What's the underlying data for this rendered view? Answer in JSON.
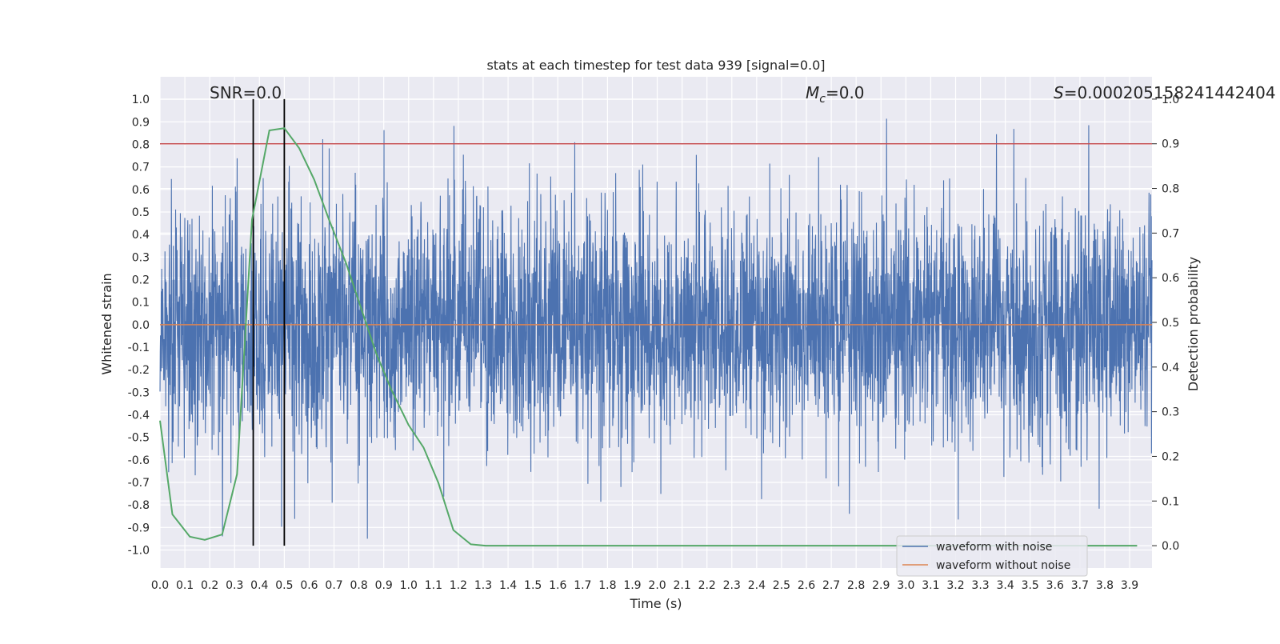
{
  "chart_data": {
    "type": "line",
    "title": "stats at each timestep for test data 939 [signal=0.0]",
    "xlabel": "Time (s)",
    "ylabel": "Whitened strain",
    "y2label": "Detection probability",
    "xlim": [
      0.0,
      3.99
    ],
    "ylim": [
      -1.08,
      1.1
    ],
    "y2lim": [
      -0.05,
      1.05
    ],
    "x_ticks": [
      "0.0",
      "0.1",
      "0.2",
      "0.3",
      "0.4",
      "0.5",
      "0.6",
      "0.7",
      "0.8",
      "0.9",
      "1.0",
      "1.1",
      "1.2",
      "1.3",
      "1.4",
      "1.5",
      "1.6",
      "1.7",
      "1.8",
      "1.9",
      "2.0",
      "2.1",
      "2.2",
      "2.3",
      "2.4",
      "2.5",
      "2.6",
      "2.7",
      "2.8",
      "2.9",
      "3.0",
      "3.1",
      "3.2",
      "3.3",
      "3.4",
      "3.5",
      "3.6",
      "3.7",
      "3.8",
      "3.9"
    ],
    "y_ticks": [
      "1.0",
      "0.9",
      "0.8",
      "0.7",
      "0.6",
      "0.5",
      "0.4",
      "0.3",
      "0.2",
      "0.1",
      "0.0",
      "-0.1",
      "-0.2",
      "-0.3",
      "-0.4",
      "-0.5",
      "-0.6",
      "-0.7",
      "-0.8",
      "-0.9",
      "-1.0"
    ],
    "y2_ticks": [
      "1.0",
      "0.9",
      "0.8",
      "0.7",
      "0.6",
      "0.5",
      "0.4",
      "0.3",
      "0.2",
      "0.1",
      "0.0"
    ],
    "annotations": {
      "snr": "SNR=0.0",
      "mc_symbol": "M",
      "mc_sub": "c",
      "mc_value": "=0.0",
      "s_symbol": "S",
      "s_value": "=0.000205158241442404"
    },
    "series": [
      {
        "name": "waveform with noise",
        "color": "#4c72b0",
        "description_values": "dense noise signal between about -0.95 and 1.0"
      },
      {
        "name": "waveform without noise",
        "color": "#dd8452",
        "y": 0.0
      },
      {
        "name": "detection probability",
        "axis": "right",
        "color": "#55a868",
        "x": [
          0.0,
          0.05,
          0.12,
          0.18,
          0.25,
          0.31,
          0.37,
          0.44,
          0.5,
          0.56,
          0.62,
          0.68,
          0.75,
          0.81,
          0.87,
          0.93,
          1.0,
          1.06,
          1.12,
          1.18,
          1.25,
          1.31,
          1.37,
          1.43,
          1.5,
          1.56,
          1.62,
          1.68,
          1.75,
          1.81,
          1.87,
          1.93,
          2.0,
          2.06,
          2.12,
          2.18,
          2.25,
          2.31,
          2.37,
          2.43,
          2.5,
          2.56,
          2.62,
          2.68,
          2.75,
          2.81,
          2.87,
          2.93,
          3.0,
          3.06,
          3.12,
          3.18,
          3.25,
          3.31,
          3.37,
          3.43,
          3.5,
          3.56,
          3.62,
          3.68,
          3.75,
          3.81,
          3.87,
          3.93
        ],
        "y": [
          0.28,
          0.07,
          0.02,
          0.013,
          0.025,
          0.16,
          0.73,
          0.93,
          0.935,
          0.89,
          0.82,
          0.73,
          0.63,
          0.53,
          0.43,
          0.35,
          0.27,
          0.22,
          0.14,
          0.035,
          0.003,
          0.0,
          0.0,
          0.0,
          0.0,
          0.0,
          0.0,
          0.0,
          0.0,
          0.0,
          0.0,
          0.0,
          0.0,
          0.0,
          0.0,
          0.0,
          0.0,
          0.0,
          0.0,
          0.0,
          0.0,
          0.0,
          0.0,
          0.0,
          0.0,
          0.0,
          0.0,
          0.0,
          0.0,
          0.0,
          0.0,
          0.0,
          0.0,
          0.0,
          0.0,
          0.0,
          0.0,
          0.0,
          0.0,
          0.0,
          0.0,
          0.0,
          0.0,
          0.0
        ]
      }
    ],
    "threshold_line": {
      "axis": "right",
      "y": 0.9,
      "color": "#c44e52"
    },
    "vertical_lines": {
      "x": [
        0.375,
        0.5
      ],
      "color": "#000000"
    },
    "legend": {
      "placement": "lower-right",
      "entries": [
        {
          "label": "waveform with noise",
          "color": "#4c72b0"
        },
        {
          "label": "waveform without noise",
          "color": "#dd8452"
        }
      ]
    },
    "grid": true
  }
}
